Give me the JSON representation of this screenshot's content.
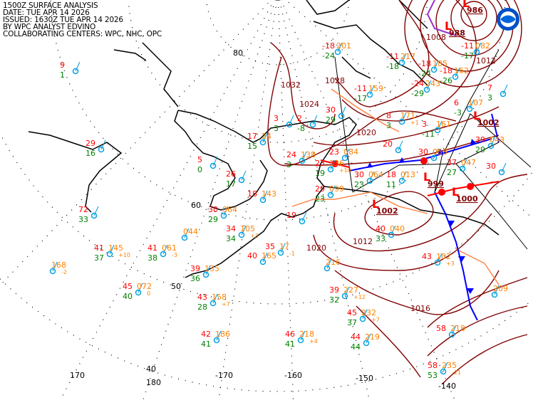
{
  "header": {
    "title": "1500Z SURFACE ANALYSIS",
    "date": "DATE: TUE APR 14 2026",
    "issued": "ISSUED: 1630Z TUE APR 14 2026",
    "analyst": "BY WPC ANALYST EDVINO",
    "centers": "COLLABORATING CENTERS: WPC, NHC, OPC"
  },
  "logo": {
    "text": "NOAA"
  },
  "graticule": {
    "latitudes": [
      "80",
      "60",
      "50",
      "40"
    ],
    "longitudes": [
      "170",
      "180",
      "-170",
      "-160",
      "-150",
      "-140"
    ]
  },
  "isobar_labels": [
    "1032",
    "1028",
    "1024",
    "1020",
    "1012",
    "1020",
    "1016",
    "1008",
    "1012"
  ],
  "pressure_centers": [
    {
      "type": "L",
      "value": "1002"
    },
    {
      "type": "L",
      "value": "999"
    },
    {
      "type": "L",
      "value": "1000"
    },
    {
      "type": "L",
      "value": "1002"
    },
    {
      "type": "L",
      "value": "988"
    },
    {
      "type": "L",
      "value": "986"
    }
  ],
  "stations": [
    {
      "temp": "9",
      "pres": "",
      "dew": "1"
    },
    {
      "temp": "29",
      "pres": "",
      "dew": "16"
    },
    {
      "temp": "72",
      "pres": "",
      "dew": "33"
    },
    {
      "temp": "41",
      "pres": "145",
      "dew": "37",
      "tend": "+10"
    },
    {
      "temp": "41",
      "pres": "061",
      "dew": "38",
      "tend": "-3"
    },
    {
      "temp": "",
      "pres": "168",
      "dew": "",
      "tend": "-2"
    },
    {
      "temp": "45",
      "pres": "072",
      "dew": "40",
      "tend": "0"
    },
    {
      "temp": "39",
      "pres": "135",
      "dew": "36"
    },
    {
      "temp": "43",
      "pres": "158",
      "dew": "28",
      "tend": "+7"
    },
    {
      "temp": "42",
      "pres": "186",
      "dew": "41"
    },
    {
      "temp": "34",
      "pres": "105",
      "dew": "34",
      "tend": "+3"
    },
    {
      "temp": "40",
      "pres": "165",
      "dew": ""
    },
    {
      "temp": "35",
      "pres": "17",
      "dew": "",
      "tend": "-1"
    },
    {
      "temp": "46",
      "pres": "218",
      "dew": "41",
      "tend": "+4"
    },
    {
      "temp": "39",
      "pres": "227",
      "dew": "32",
      "tend": "+12"
    },
    {
      "temp": "45",
      "pres": "232",
      "dew": "37",
      "tend": "+7"
    },
    {
      "temp": "44",
      "pres": "219",
      "dew": "44"
    },
    {
      "temp": "58",
      "pres": "218",
      "dew": ""
    },
    {
      "temp": "58",
      "pres": "235",
      "dew": "53",
      "tend": "-21"
    },
    {
      "temp": "43",
      "pres": "102",
      "dew": "",
      "tend": "+3"
    },
    {
      "temp": "40",
      "pres": "040",
      "dew": "33"
    },
    {
      "temp": "30",
      "pres": "064",
      "dew": "23"
    },
    {
      "temp": "23",
      "pres": "136",
      "dew": "19",
      "tend": "+10"
    },
    {
      "temp": "18",
      "pres": "013",
      "dew": "11"
    },
    {
      "temp": "37",
      "pres": "047",
      "dew": "27"
    },
    {
      "temp": "30",
      "pres": "058",
      "dew": ""
    },
    {
      "temp": "",
      "pres": "209",
      "dew": ""
    },
    {
      "temp": "",
      "pres": "216",
      "dew": ""
    },
    {
      "temp": "",
      "pres": "044",
      "dew": ""
    },
    {
      "temp": "30",
      "pres": "064",
      "dew": "29"
    },
    {
      "temp": "-18",
      "pres": "201",
      "dew": "-24"
    },
    {
      "temp": "-11",
      "pres": "217",
      "dew": "-18"
    },
    {
      "temp": "-18",
      "pres": "185",
      "dew": "-24"
    },
    {
      "temp": "-18",
      "pres": "162",
      "dew": "-26"
    },
    {
      "temp": "-11",
      "pres": "082",
      "dew": "-17"
    },
    {
      "temp": "-24",
      "pres": "243",
      "dew": "-29"
    },
    {
      "temp": "-11",
      "pres": "159",
      "dew": "-17"
    },
    {
      "temp": "30",
      "pres": "",
      "dew": "29"
    },
    {
      "temp": "8",
      "pres": "171",
      "dew": "3",
      "tend": "+1"
    },
    {
      "temp": "3",
      "pres": "161",
      "dew": "-11"
    },
    {
      "temp": "6",
      "pres": "107",
      "dew": "-3"
    },
    {
      "temp": "39",
      "pres": "043",
      "dew": "29"
    },
    {
      "temp": "23",
      "pres": "084",
      "dew": ""
    },
    {
      "temp": "20",
      "pres": "",
      "dew": ""
    },
    {
      "temp": "3",
      "pres": "",
      "dew": "3"
    },
    {
      "temp": "2",
      "pres": "",
      "dew": "-8"
    },
    {
      "temp": "17",
      "pres": "24",
      "dew": "15"
    },
    {
      "temp": "5",
      "pres": "",
      "dew": "0"
    },
    {
      "temp": "26",
      "pres": "",
      "dew": "17"
    },
    {
      "temp": "18",
      "pres": "143",
      "dew": ""
    },
    {
      "temp": "24",
      "pres": "138",
      "dew": "3"
    },
    {
      "temp": "19",
      "pres": "",
      "dew": ""
    },
    {
      "temp": "29",
      "pres": "099",
      "dew": "23"
    },
    {
      "temp": "7",
      "pres": "",
      "dew": "3"
    },
    {
      "temp": "30",
      "pres": "",
      "dew": ""
    }
  ],
  "colors": {
    "isobar": "#800000",
    "temp": "#ff0000",
    "pressure": "#ff8000",
    "dewpoint": "#008000",
    "station": "#00a0e0",
    "cold_front": "#0000ff",
    "warm_front": "#ff0000",
    "trough": "#ff8040",
    "occluded": "#9933cc"
  }
}
